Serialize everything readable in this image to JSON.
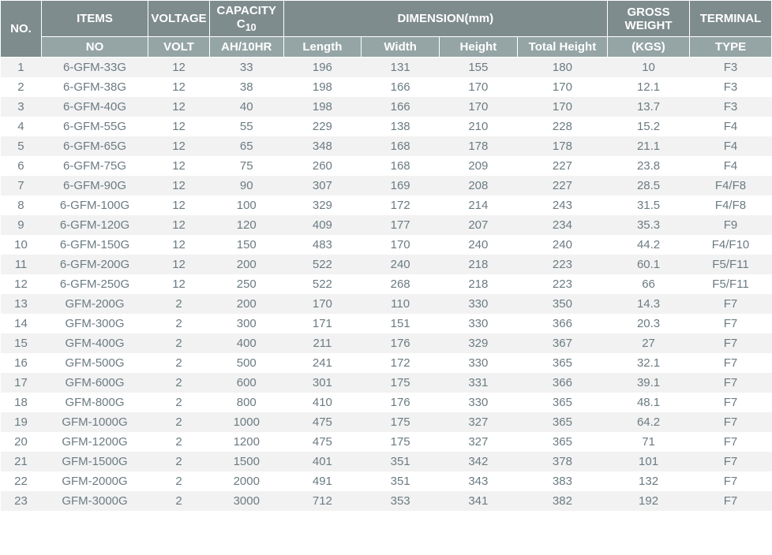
{
  "header": {
    "no": "NO.",
    "items": "ITEMS",
    "voltage": "VOLTAGE",
    "capacity": "CAPACITY C",
    "capacity_sub": "10",
    "dimension": "DIMENSION(mm)",
    "gross": "GROSS WEIGHT",
    "terminal": "TERMINAL"
  },
  "subheader": {
    "no": "NO",
    "volt": "VOLT",
    "ah": "AH/10HR",
    "length": "Length",
    "width": "Width",
    "height": "Height",
    "theight": "Total Height",
    "kgs": "(KGS)",
    "type": "TYPE"
  },
  "rows": [
    [
      "1",
      "6-GFM-33G",
      "12",
      "33",
      "196",
      "131",
      "155",
      "180",
      "10",
      "F3"
    ],
    [
      "2",
      "6-GFM-38G",
      "12",
      "38",
      "198",
      "166",
      "170",
      "170",
      "12.1",
      "F3"
    ],
    [
      "3",
      "6-GFM-40G",
      "12",
      "40",
      "198",
      "166",
      "170",
      "170",
      "13.7",
      "F3"
    ],
    [
      "4",
      "6-GFM-55G",
      "12",
      "55",
      "229",
      "138",
      "210",
      "228",
      "15.2",
      "F4"
    ],
    [
      "5",
      "6-GFM-65G",
      "12",
      "65",
      "348",
      "168",
      "178",
      "178",
      "21.1",
      "F4"
    ],
    [
      "6",
      "6-GFM-75G",
      "12",
      "75",
      "260",
      "168",
      "209",
      "227",
      "23.8",
      "F4"
    ],
    [
      "7",
      "6-GFM-90G",
      "12",
      "90",
      "307",
      "169",
      "208",
      "227",
      "28.5",
      "F4/F8"
    ],
    [
      "8",
      "6-GFM-100G",
      "12",
      "100",
      "329",
      "172",
      "214",
      "243",
      "31.5",
      "F4/F8"
    ],
    [
      "9",
      "6-GFM-120G",
      "12",
      "120",
      "409",
      "177",
      "207",
      "234",
      "35.3",
      "F9"
    ],
    [
      "10",
      "6-GFM-150G",
      "12",
      "150",
      "483",
      "170",
      "240",
      "240",
      "44.2",
      "F4/F10"
    ],
    [
      "11",
      "6-GFM-200G",
      "12",
      "200",
      "522",
      "240",
      "218",
      "223",
      "60.1",
      "F5/F11"
    ],
    [
      "12",
      "6-GFM-250G",
      "12",
      "250",
      "522",
      "268",
      "218",
      "223",
      "66",
      "F5/F11"
    ],
    [
      "13",
      "GFM-200G",
      "2",
      "200",
      "170",
      "110",
      "330",
      "350",
      "14.3",
      "F7"
    ],
    [
      "14",
      "GFM-300G",
      "2",
      "300",
      "171",
      "151",
      "330",
      "366",
      "20.3",
      "F7"
    ],
    [
      "15",
      "GFM-400G",
      "2",
      "400",
      "211",
      "176",
      "329",
      "367",
      "27",
      "F7"
    ],
    [
      "16",
      "GFM-500G",
      "2",
      "500",
      "241",
      "172",
      "330",
      "365",
      "32.1",
      "F7"
    ],
    [
      "17",
      "GFM-600G",
      "2",
      "600",
      "301",
      "175",
      "331",
      "366",
      "39.1",
      "F7"
    ],
    [
      "18",
      "GFM-800G",
      "2",
      "800",
      "410",
      "176",
      "330",
      "365",
      "48.1",
      "F7"
    ],
    [
      "19",
      "GFM-1000G",
      "2",
      "1000",
      "475",
      "175",
      "327",
      "365",
      "64.2",
      "F7"
    ],
    [
      "20",
      "GFM-1200G",
      "2",
      "1200",
      "475",
      "175",
      "327",
      "365",
      "71",
      "F7"
    ],
    [
      "21",
      "GFM-1500G",
      "2",
      "1500",
      "401",
      "351",
      "342",
      "378",
      "101",
      "F7"
    ],
    [
      "22",
      "GFM-2000G",
      "2",
      "2000",
      "491",
      "351",
      "343",
      "383",
      "132",
      "F7"
    ],
    [
      "23",
      "GFM-3000G",
      "2",
      "3000",
      "712",
      "353",
      "341",
      "382",
      "192",
      "F7"
    ]
  ]
}
